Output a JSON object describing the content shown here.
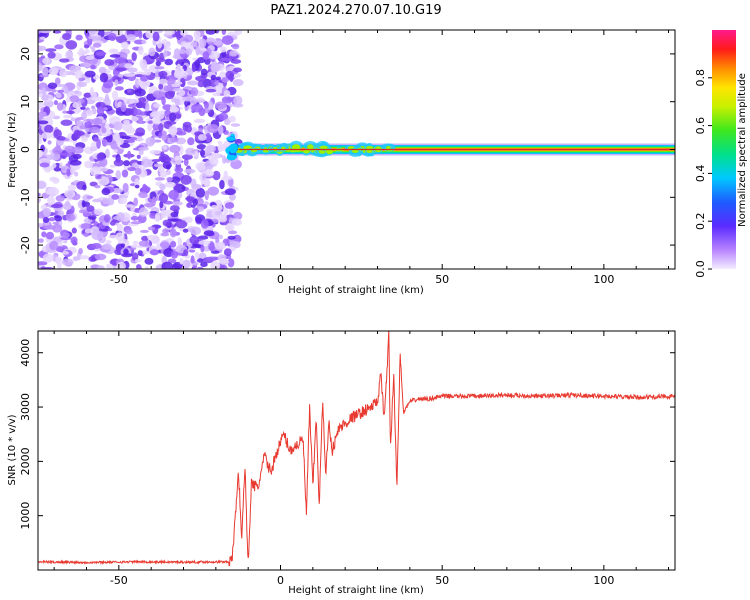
{
  "title": "PAZ1.2024.270.07.10.G19",
  "colors": {
    "snr_line": "#e83a30",
    "frame": "#000000",
    "signal_core": "#d42a2a",
    "noise_dots": "#7a3ff0"
  },
  "chart_data": [
    {
      "type": "heatmap",
      "title": "PAZ1.2024.270.07.10.G19",
      "xlabel": "Height of straight line (km)",
      "ylabel": "Frequency (Hz)",
      "xlim": [
        -75,
        122
      ],
      "ylim": [
        -25,
        25
      ],
      "xticks": [
        -50,
        0,
        50,
        100
      ],
      "yticks": [
        -20,
        -10,
        0,
        10,
        20
      ],
      "colorbar": {
        "label": "Normalized spectral amplitude",
        "range": [
          0,
          1
        ],
        "ticks": [
          0.0,
          0.2,
          0.4,
          0.6,
          0.8
        ],
        "colormap": "rainbow (white-purple-blue-cyan-green-yellow-red-magenta)"
      },
      "features": {
        "noise_region_x": [
          -75,
          -16
        ],
        "tone_start_x": -16,
        "tone_frequency_hz": 0,
        "tone_wobble_region_x": [
          -16,
          34
        ]
      }
    },
    {
      "type": "line",
      "xlabel": "Height of straight line (km)",
      "ylabel": "SNR (10 * v/v)",
      "xlim": [
        -75,
        122
      ],
      "ylim": [
        0,
        4400
      ],
      "xticks": [
        -50,
        0,
        50,
        100
      ],
      "yticks": [
        1000,
        2000,
        3000,
        4000
      ],
      "series": [
        {
          "x": [
            -75,
            -60,
            -45,
            -30,
            -18,
            -15,
            -13,
            -12,
            -11,
            -10,
            -9,
            -7,
            -5,
            -3,
            -1,
            1,
            3,
            5,
            7,
            8,
            9,
            10,
            11,
            12,
            13,
            14,
            15,
            16,
            18,
            20,
            22,
            25,
            28,
            30,
            31,
            32,
            33,
            33.5,
            34,
            35,
            36,
            37,
            38,
            40,
            43,
            46,
            50,
            60,
            70,
            80,
            90,
            100,
            110,
            122
          ],
          "y": [
            150,
            140,
            150,
            145,
            150,
            160,
            1800,
            600,
            1900,
            100,
            1600,
            1500,
            2100,
            1800,
            2200,
            2500,
            2200,
            2300,
            2400,
            1000,
            3000,
            1500,
            2800,
            1200,
            3100,
            1800,
            2700,
            2200,
            2600,
            2700,
            2800,
            2900,
            3000,
            3100,
            3600,
            2800,
            3700,
            4350,
            2200,
            3600,
            1500,
            4000,
            2900,
            3100,
            3150,
            3150,
            3200,
            3200,
            3220,
            3200,
            3220,
            3200,
            3180,
            3200
          ]
        }
      ]
    }
  ]
}
